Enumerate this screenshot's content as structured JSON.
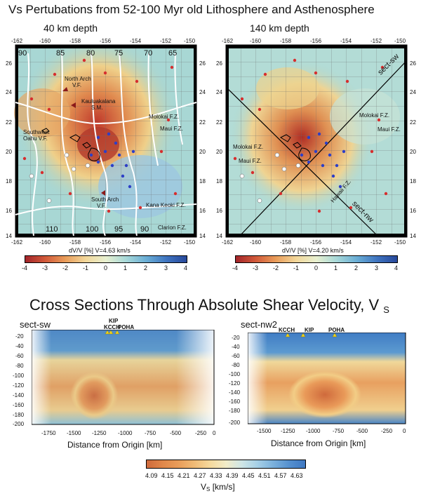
{
  "main_title": "Vs Pertubations from 52-100 Myr old Lithosphere and Asthenosphere",
  "maps": [
    {
      "title": "40 km depth",
      "x_ticks": [
        "-162",
        "-160",
        "-158",
        "-156",
        "-154",
        "-152",
        "-150"
      ],
      "y_ticks": [
        "26",
        "24",
        "22",
        "20",
        "18",
        "16",
        "14"
      ],
      "ages_top": [
        "90",
        "85",
        "80",
        "75",
        "70",
        "65"
      ],
      "ages_bottom": [
        "110",
        "100",
        "95",
        "90"
      ],
      "labels": [
        "North Arch",
        "V.F.",
        "Kauluakalana",
        "S.M.",
        "Southwest",
        "Oahu V.F.",
        "South Arch",
        "V.F.",
        "Molokai F.Z.",
        "Maui F.Z.",
        "Kana Keoki F.Z.",
        "Clarion F.Z."
      ],
      "caption": "dV/V [%] V=4.63 km/s",
      "colorbar_ticks": [
        "-4",
        "-3",
        "-2",
        "-1",
        "0",
        "1",
        "2",
        "3",
        "4"
      ]
    },
    {
      "title": "140 km depth",
      "x_ticks": [
        "-162",
        "-160",
        "-158",
        "-156",
        "-154",
        "-152",
        "-150"
      ],
      "y_ticks": [
        "26",
        "24",
        "22",
        "20",
        "18",
        "16",
        "14"
      ],
      "labels": [
        "sect-sw",
        "sect-nw",
        "Molokai F.Z.",
        "Maui F.Z.",
        "Molokai F.Z.",
        "Maui F.Z.",
        "Hawaii F.Z."
      ],
      "caption": "dV/V [%] V=4.20 km/s",
      "colorbar_ticks": [
        "-4",
        "-3",
        "-2",
        "-1",
        "0",
        "1",
        "2",
        "3",
        "4"
      ]
    }
  ],
  "sections_title": "Cross Sections Through Absolute Shear Velocity, V",
  "sections_title_sub": "S",
  "sections": [
    {
      "name": "sect-sw",
      "stations": [
        "KCCH",
        "KIP",
        "POHA"
      ],
      "y_ticks": [
        "-20",
        "-40",
        "-60",
        "-80",
        "-100",
        "-120",
        "-140",
        "-160",
        "-180",
        "-200"
      ],
      "x_ticks": [
        "-1750",
        "-1500",
        "-1250",
        "-1000",
        "-750",
        "-500",
        "-250",
        "0"
      ],
      "xlabel": "Distance from Origin [km]"
    },
    {
      "name": "sect-nw2",
      "stations": [
        "KCCH",
        "KIP",
        "POHA"
      ],
      "y_ticks": [
        "-20",
        "-40",
        "-60",
        "-80",
        "-100",
        "-120",
        "-140",
        "-160",
        "-180",
        "-200"
      ],
      "x_ticks": [
        "-1500",
        "-1250",
        "-1000",
        "-750",
        "-500",
        "-250",
        "0"
      ],
      "xlabel": "Distance from Origin [km]"
    }
  ],
  "vs_colorbar": {
    "ticks": [
      "4.09",
      "4.15",
      "4.21",
      "4.27",
      "4.33",
      "4.39",
      "4.45",
      "4.51",
      "4.57",
      "4.63"
    ],
    "label": "V",
    "label_sub": "S",
    "label_unit": " [km/s]"
  },
  "colors": {
    "red": "#b2382a",
    "orange": "#e8a25a",
    "yellow": "#f1e58f",
    "cyan": "#9fd4dc",
    "blue": "#4a86c8"
  }
}
